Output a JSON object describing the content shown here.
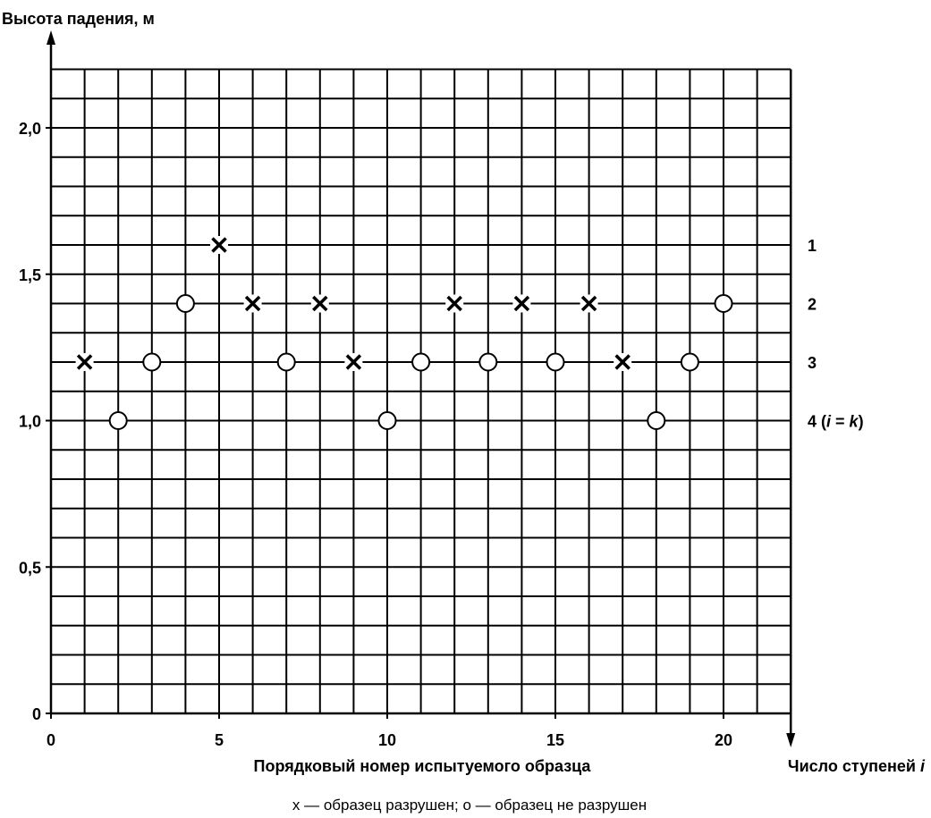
{
  "chart_data": {
    "type": "scatter",
    "ylabel": "Высота падения, м",
    "xlabel": "Порядковый номер испытуемого образца",
    "right_axis_label": "Число ступеней",
    "right_axis_label_var": "i",
    "caption": "х — образец разрушен; о — образец не разрушен",
    "x_ticks": [
      "0",
      "5",
      "10",
      "15",
      "20"
    ],
    "x_tick_values": [
      0,
      5,
      10,
      15,
      20
    ],
    "y_ticks": [
      "0",
      "0,5",
      "1,0",
      "1,5",
      "2,0"
    ],
    "y_tick_values": [
      0,
      0.5,
      1.0,
      1.5,
      2.0
    ],
    "xlim": [
      0,
      22
    ],
    "ylim": [
      0,
      2.2
    ],
    "grid": true,
    "grid_step_x": 1,
    "grid_step_y": 0.1,
    "levels": [
      {
        "y": 1.6,
        "label": "1"
      },
      {
        "y": 1.4,
        "label": "2"
      },
      {
        "y": 1.2,
        "label": "3"
      },
      {
        "y": 1.0,
        "label": "4",
        "suffix_open": " (",
        "var_i": "i",
        "eq": " = ",
        "var_k": "k",
        "suffix_close": ")"
      }
    ],
    "series": [
      {
        "name": "образец разрушен",
        "marker": "x",
        "points": [
          {
            "x": 1,
            "y": 1.2
          },
          {
            "x": 5,
            "y": 1.6
          },
          {
            "x": 6,
            "y": 1.4
          },
          {
            "x": 8,
            "y": 1.4
          },
          {
            "x": 9,
            "y": 1.2
          },
          {
            "x": 12,
            "y": 1.4
          },
          {
            "x": 14,
            "y": 1.4
          },
          {
            "x": 16,
            "y": 1.4
          },
          {
            "x": 17,
            "y": 1.2
          }
        ]
      },
      {
        "name": "образец не разрушен",
        "marker": "o",
        "points": [
          {
            "x": 2,
            "y": 1.0
          },
          {
            "x": 3,
            "y": 1.2
          },
          {
            "x": 4,
            "y": 1.4
          },
          {
            "x": 7,
            "y": 1.2
          },
          {
            "x": 10,
            "y": 1.0
          },
          {
            "x": 11,
            "y": 1.2
          },
          {
            "x": 13,
            "y": 1.2
          },
          {
            "x": 15,
            "y": 1.2
          },
          {
            "x": 18,
            "y": 1.0
          },
          {
            "x": 19,
            "y": 1.2
          },
          {
            "x": 20,
            "y": 1.4
          }
        ]
      }
    ]
  }
}
